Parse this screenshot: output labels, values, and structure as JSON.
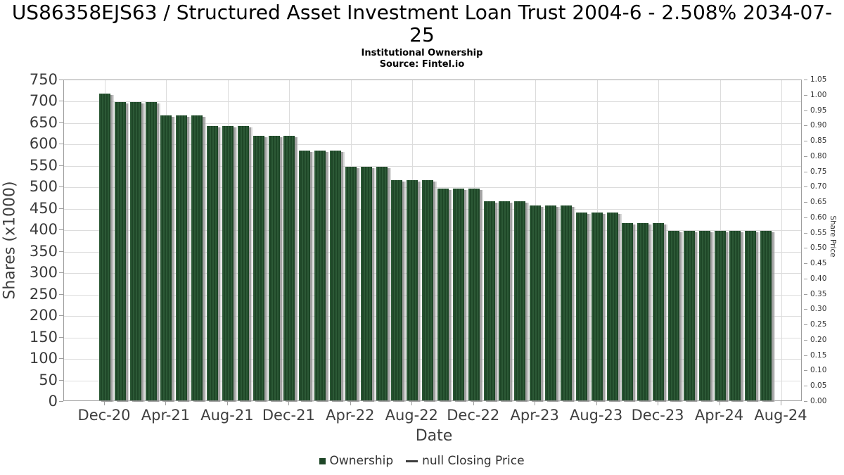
{
  "header": {
    "title": "US86358EJS63 / Structured Asset Investment Loan Trust 2004-6 - 2.508% 2034-07-25",
    "subtitle": "Institutional Ownership",
    "source": "Source: Fintel.io"
  },
  "chart_data": {
    "type": "bar",
    "title": "US86358EJS63 / Structured Asset Investment Loan Trust 2004-6 - 2.508% 2034-07-25",
    "subtitle": "Institutional Ownership",
    "source": "Source: Fintel.io",
    "xlabel": "Date",
    "ylabel_left": "Shares (x1000)",
    "ylabel_right": "Share Price",
    "ylim_left": [
      0,
      750
    ],
    "ytick_step_left": 50,
    "ylim_right": [
      0.0,
      1.05
    ],
    "ytick_step_right": 0.05,
    "grid": true,
    "bar_color": "#2c5936",
    "xtick_labels": [
      "Dec-20",
      "Apr-21",
      "Aug-21",
      "Dec-21",
      "Apr-22",
      "Aug-22",
      "Dec-22",
      "Apr-23",
      "Aug-23",
      "Dec-23",
      "Apr-24",
      "Aug-24"
    ],
    "x": [
      "Dec-20",
      "Jan-21",
      "Feb-21",
      "Mar-21",
      "Apr-21",
      "May-21",
      "Jun-21",
      "Jul-21",
      "Aug-21",
      "Sep-21",
      "Oct-21",
      "Nov-21",
      "Dec-21",
      "Jan-22",
      "Feb-22",
      "Mar-22",
      "Apr-22",
      "May-22",
      "Jun-22",
      "Jul-22",
      "Aug-22",
      "Sep-22",
      "Oct-22",
      "Nov-22",
      "Dec-22",
      "Jan-23",
      "Feb-23",
      "Mar-23",
      "Apr-23",
      "May-23",
      "Jun-23",
      "Jul-23",
      "Aug-23",
      "Sep-23",
      "Oct-23",
      "Nov-23",
      "Dec-23",
      "Jan-24",
      "Feb-24",
      "Mar-24",
      "Apr-24",
      "May-24",
      "Jun-24",
      "Jul-24"
    ],
    "series": [
      {
        "name": "Ownership",
        "values": [
          718,
          697,
          697,
          697,
          666,
          666,
          666,
          641,
          641,
          641,
          618,
          618,
          618,
          585,
          585,
          585,
          547,
          547,
          547,
          516,
          516,
          516,
          495,
          495,
          495,
          466,
          466,
          466,
          457,
          457,
          457,
          440,
          440,
          440,
          415,
          415,
          415,
          397,
          397,
          397,
          397,
          397,
          397,
          397
        ]
      }
    ],
    "legend": [
      {
        "label": "Ownership",
        "swatch": "square",
        "color": "#1e4627"
      },
      {
        "label": "null Closing Price",
        "swatch": "line",
        "color": "#3f3f3f"
      }
    ],
    "legend_position": "bottom"
  }
}
